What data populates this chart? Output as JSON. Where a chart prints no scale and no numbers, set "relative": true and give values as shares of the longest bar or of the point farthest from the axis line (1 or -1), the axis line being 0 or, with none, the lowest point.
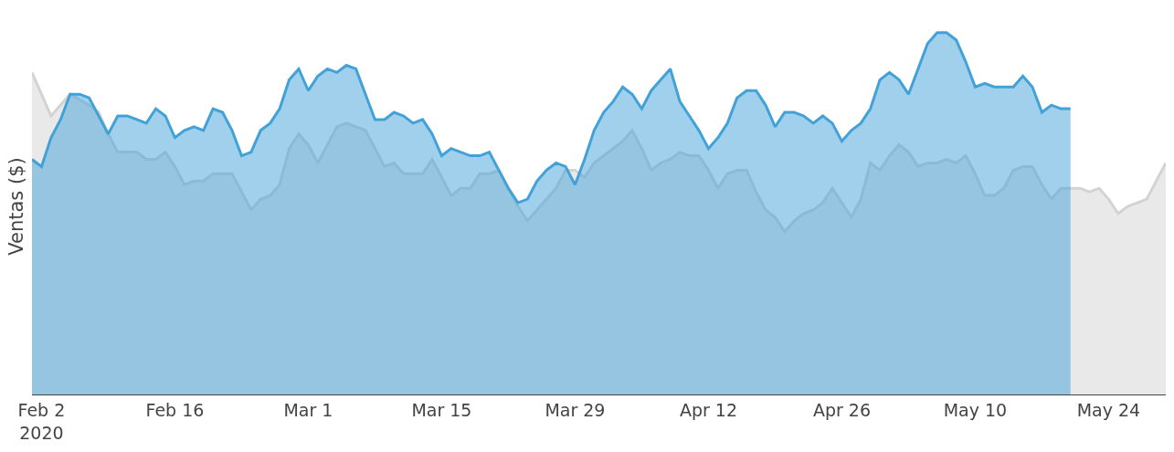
{
  "chart_data": {
    "type": "area",
    "relative": true,
    "ylabel": "Ventas ($)",
    "xlim": [
      "2020-02-01",
      "2020-05-30"
    ],
    "xticks": [
      {
        "value": "2020-02-02",
        "label": "Feb 2\n2020"
      },
      {
        "value": "2020-02-16",
        "label": "Feb 16"
      },
      {
        "value": "2020-03-01",
        "label": "Mar 1"
      },
      {
        "value": "2020-03-15",
        "label": "Mar 15"
      },
      {
        "value": "2020-03-29",
        "label": "Mar 29"
      },
      {
        "value": "2020-04-12",
        "label": "Apr 12"
      },
      {
        "value": "2020-04-26",
        "label": "Apr 26"
      },
      {
        "value": "2020-05-10",
        "label": "May 10"
      },
      {
        "value": "2020-05-24",
        "label": "May 24"
      }
    ],
    "series": [
      {
        "color": "#d3d3d3",
        "x": [
          "2020-02-01",
          "2020-02-03",
          "2020-02-05",
          "2020-02-07",
          "2020-02-08",
          "2020-02-09",
          "2020-02-10",
          "2020-02-11",
          "2020-02-12",
          "2020-02-13",
          "2020-02-14",
          "2020-02-15",
          "2020-02-16",
          "2020-02-17",
          "2020-02-18",
          "2020-02-19",
          "2020-02-20",
          "2020-02-21",
          "2020-02-22",
          "2020-02-23",
          "2020-02-24",
          "2020-02-25",
          "2020-02-26",
          "2020-02-27",
          "2020-02-28",
          "2020-02-29",
          "2020-03-01",
          "2020-03-02",
          "2020-03-03",
          "2020-03-04",
          "2020-03-05",
          "2020-03-06",
          "2020-03-07",
          "2020-03-08",
          "2020-03-09",
          "2020-03-10",
          "2020-03-11",
          "2020-03-12",
          "2020-03-13",
          "2020-03-14",
          "2020-03-15",
          "2020-03-16",
          "2020-03-17",
          "2020-03-18",
          "2020-03-19",
          "2020-03-20",
          "2020-03-21",
          "2020-03-22",
          "2020-03-23",
          "2020-03-24",
          "2020-03-25",
          "2020-03-26",
          "2020-03-27",
          "2020-03-28",
          "2020-03-29",
          "2020-03-30",
          "2020-03-31",
          "2020-04-01",
          "2020-04-02",
          "2020-04-03",
          "2020-04-04",
          "2020-04-05",
          "2020-04-06",
          "2020-04-07",
          "2020-04-08",
          "2020-04-09",
          "2020-04-10",
          "2020-04-11",
          "2020-04-12",
          "2020-04-13",
          "2020-04-14",
          "2020-04-15",
          "2020-04-16",
          "2020-04-17",
          "2020-04-18",
          "2020-04-19",
          "2020-04-20",
          "2020-04-21",
          "2020-04-22",
          "2020-04-23",
          "2020-04-24",
          "2020-04-25",
          "2020-04-26",
          "2020-04-27",
          "2020-04-28",
          "2020-04-29",
          "2020-04-30",
          "2020-05-01",
          "2020-05-02",
          "2020-05-03",
          "2020-05-04",
          "2020-05-05",
          "2020-05-06",
          "2020-05-07",
          "2020-05-08",
          "2020-05-09",
          "2020-05-10",
          "2020-05-11",
          "2020-05-12",
          "2020-05-13",
          "2020-05-14",
          "2020-05-15",
          "2020-05-16",
          "2020-05-17",
          "2020-05-18",
          "2020-05-19",
          "2020-05-20",
          "2020-05-21",
          "2020-05-22",
          "2020-05-23",
          "2020-05-24",
          "2020-05-25",
          "2020-05-26",
          "2020-05-27",
          "2020-05-28",
          "2020-05-29",
          "2020-05-30"
        ],
        "values": [
          0.89,
          0.77,
          0.83,
          0.8,
          0.78,
          0.72,
          0.67,
          0.67,
          0.67,
          0.65,
          0.65,
          0.67,
          0.63,
          0.58,
          0.59,
          0.59,
          0.61,
          0.61,
          0.61,
          0.56,
          0.51,
          0.54,
          0.55,
          0.58,
          0.68,
          0.72,
          0.69,
          0.64,
          0.69,
          0.74,
          0.75,
          0.74,
          0.73,
          0.68,
          0.63,
          0.64,
          0.61,
          0.61,
          0.61,
          0.65,
          0.6,
          0.55,
          0.57,
          0.57,
          0.61,
          0.61,
          0.62,
          0.57,
          0.52,
          0.48,
          0.51,
          0.54,
          0.57,
          0.62,
          0.62,
          0.6,
          0.64,
          0.66,
          0.68,
          0.7,
          0.73,
          0.68,
          0.62,
          0.64,
          0.65,
          0.67,
          0.66,
          0.66,
          0.62,
          0.57,
          0.61,
          0.62,
          0.62,
          0.56,
          0.51,
          0.49,
          0.45,
          0.48,
          0.5,
          0.51,
          0.53,
          0.57,
          0.53,
          0.49,
          0.54,
          0.64,
          0.62,
          0.66,
          0.69,
          0.67,
          0.63,
          0.64,
          0.64,
          0.65,
          0.64,
          0.66,
          0.61,
          0.55,
          0.55,
          0.57,
          0.62,
          0.63,
          0.63,
          0.58,
          0.54,
          0.57,
          0.57,
          0.57,
          0.56,
          0.57,
          0.54,
          0.5,
          0.52,
          0.53,
          0.54,
          0.59,
          0.64
        ]
      },
      {
        "color": "#42a2d8",
        "x": [
          "2020-02-01",
          "2020-02-02",
          "2020-02-03",
          "2020-02-04",
          "2020-02-05",
          "2020-02-06",
          "2020-02-07",
          "2020-02-09",
          "2020-02-10",
          "2020-02-11",
          "2020-02-12",
          "2020-02-13",
          "2020-02-14",
          "2020-02-15",
          "2020-02-16",
          "2020-02-17",
          "2020-02-18",
          "2020-02-19",
          "2020-02-20",
          "2020-02-21",
          "2020-02-22",
          "2020-02-23",
          "2020-02-24",
          "2020-02-25",
          "2020-02-26",
          "2020-02-27",
          "2020-02-28",
          "2020-02-29",
          "2020-03-01",
          "2020-03-02",
          "2020-03-03",
          "2020-03-04",
          "2020-03-05",
          "2020-03-06",
          "2020-03-07",
          "2020-03-08",
          "2020-03-09",
          "2020-03-10",
          "2020-03-11",
          "2020-03-12",
          "2020-03-13",
          "2020-03-14",
          "2020-03-15",
          "2020-03-16",
          "2020-03-17",
          "2020-03-18",
          "2020-03-19",
          "2020-03-20",
          "2020-03-21",
          "2020-03-22",
          "2020-03-23",
          "2020-03-24",
          "2020-03-25",
          "2020-03-26",
          "2020-03-27",
          "2020-03-28",
          "2020-03-29",
          "2020-03-30",
          "2020-03-31",
          "2020-04-01",
          "2020-04-02",
          "2020-04-03",
          "2020-04-04",
          "2020-04-05",
          "2020-04-06",
          "2020-04-07",
          "2020-04-08",
          "2020-04-09",
          "2020-04-10",
          "2020-04-11",
          "2020-04-12",
          "2020-04-13",
          "2020-04-14",
          "2020-04-15",
          "2020-04-16",
          "2020-04-17",
          "2020-04-18",
          "2020-04-19",
          "2020-04-20",
          "2020-04-21",
          "2020-04-22",
          "2020-04-23",
          "2020-04-24",
          "2020-04-25",
          "2020-04-26",
          "2020-04-27",
          "2020-04-28",
          "2020-04-29",
          "2020-04-30",
          "2020-05-01",
          "2020-05-02",
          "2020-05-03",
          "2020-05-04",
          "2020-05-05",
          "2020-05-06",
          "2020-05-07",
          "2020-05-08",
          "2020-05-09",
          "2020-05-10",
          "2020-05-11",
          "2020-05-12",
          "2020-05-13",
          "2020-05-14",
          "2020-05-15",
          "2020-05-16",
          "2020-05-17",
          "2020-05-18",
          "2020-05-19",
          "2020-05-20"
        ],
        "values": [
          0.65,
          0.63,
          0.71,
          0.76,
          0.83,
          0.83,
          0.82,
          0.72,
          0.77,
          0.77,
          0.76,
          0.75,
          0.79,
          0.77,
          0.71,
          0.73,
          0.74,
          0.73,
          0.79,
          0.78,
          0.73,
          0.66,
          0.67,
          0.73,
          0.75,
          0.79,
          0.87,
          0.9,
          0.84,
          0.88,
          0.9,
          0.89,
          0.91,
          0.9,
          0.83,
          0.76,
          0.76,
          0.78,
          0.77,
          0.75,
          0.76,
          0.72,
          0.66,
          0.68,
          0.67,
          0.66,
          0.66,
          0.67,
          0.62,
          0.57,
          0.53,
          0.54,
          0.59,
          0.62,
          0.64,
          0.63,
          0.58,
          0.65,
          0.73,
          0.78,
          0.81,
          0.85,
          0.83,
          0.79,
          0.84,
          0.87,
          0.9,
          0.81,
          0.77,
          0.73,
          0.68,
          0.71,
          0.75,
          0.82,
          0.84,
          0.84,
          0.8,
          0.74,
          0.78,
          0.78,
          0.77,
          0.75,
          0.77,
          0.75,
          0.7,
          0.73,
          0.75,
          0.79,
          0.87,
          0.89,
          0.87,
          0.83,
          0.9,
          0.97,
          1.0,
          1.0,
          0.98,
          0.92,
          0.85,
          0.86,
          0.85,
          0.85,
          0.85,
          0.88,
          0.85,
          0.78,
          0.8,
          0.79,
          0.79
        ]
      }
    ]
  }
}
